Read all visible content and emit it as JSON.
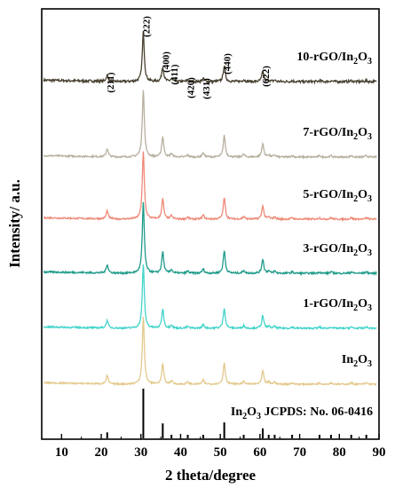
{
  "chart_data": {
    "type": "line",
    "subtype": "stacked XRD patterns with reference stick pattern",
    "xlabel": "2 theta/degree",
    "ylabel": "Intensity/ a.u.",
    "xlim": [
      5,
      90
    ],
    "x_ticks": [
      10,
      20,
      30,
      40,
      50,
      60,
      70,
      80,
      90
    ],
    "y_ticks_shown": false,
    "grid": false,
    "legend": "none (series labels printed next to each curve)",
    "peaks": [
      {
        "label": "(211)",
        "x": 21.5,
        "rel_intensity": 0.12
      },
      {
        "label": "(222)",
        "x": 30.6,
        "rel_intensity": 1.0
      },
      {
        "label": "(400)",
        "x": 35.5,
        "rel_intensity": 0.3
      },
      {
        "label": "(411)",
        "x": 37.7,
        "rel_intensity": 0.05
      },
      {
        "label": "(420)",
        "x": 41.8,
        "rel_intensity": 0.03
      },
      {
        "label": "(431)",
        "x": 45.7,
        "rel_intensity": 0.06
      },
      {
        "label": "(440)",
        "x": 51.0,
        "rel_intensity": 0.32
      },
      {
        "label": "(622)",
        "x": 60.7,
        "rel_intensity": 0.2
      }
    ],
    "minor_peaks": [
      {
        "x": 55.9,
        "rel_intensity": 0.04
      },
      {
        "x": 62.2,
        "rel_intensity": 0.03
      },
      {
        "x": 63.7,
        "rel_intensity": 0.03
      },
      {
        "x": 68.1,
        "rel_intensity": 0.02
      },
      {
        "x": 75.0,
        "rel_intensity": 0.02
      },
      {
        "x": 77.9,
        "rel_intensity": 0.02
      },
      {
        "x": 83.0,
        "rel_intensity": 0.02
      },
      {
        "x": 86.8,
        "rel_intensity": 0.02
      }
    ],
    "series": [
      {
        "name_main": "10-rGO/In",
        "name_sub": "2",
        "name_tail": "O",
        "name_sub2": "3",
        "color": "#4a4231",
        "peak_scale": 0.7,
        "noise": 1.4
      },
      {
        "name_main": "7-rGO/In",
        "name_sub": "2",
        "name_tail": "O",
        "name_sub2": "3",
        "color": "#b7b09f",
        "peak_scale": 0.95,
        "noise": 0.9
      },
      {
        "name_main": "5-rGO/In",
        "name_sub": "2",
        "name_tail": "O",
        "name_sub2": "3",
        "color": "#ee8a78",
        "peak_scale": 0.95,
        "noise": 0.9
      },
      {
        "name_main": "3-rGO/In",
        "name_sub": "2",
        "name_tail": "O",
        "name_sub2": "3",
        "color": "#1f9b8a",
        "peak_scale": 1.0,
        "noise": 1.0
      },
      {
        "name_main": "1-rGO/In",
        "name_sub": "2",
        "name_tail": "O",
        "name_sub2": "3",
        "color": "#43d4ca",
        "peak_scale": 0.9,
        "noise": 0.9
      },
      {
        "name_main": "In",
        "name_sub": "2",
        "name_tail": "O",
        "name_sub2": "3",
        "color": "#e3c98c",
        "peak_scale": 0.95,
        "noise": 0.8
      }
    ],
    "reference": {
      "name_main": "In",
      "name_sub": "2",
      "name_tail": "O",
      "name_sub2": "3",
      "name_rest": " JCPDS: No. 06-0416",
      "color": "#000000"
    }
  }
}
